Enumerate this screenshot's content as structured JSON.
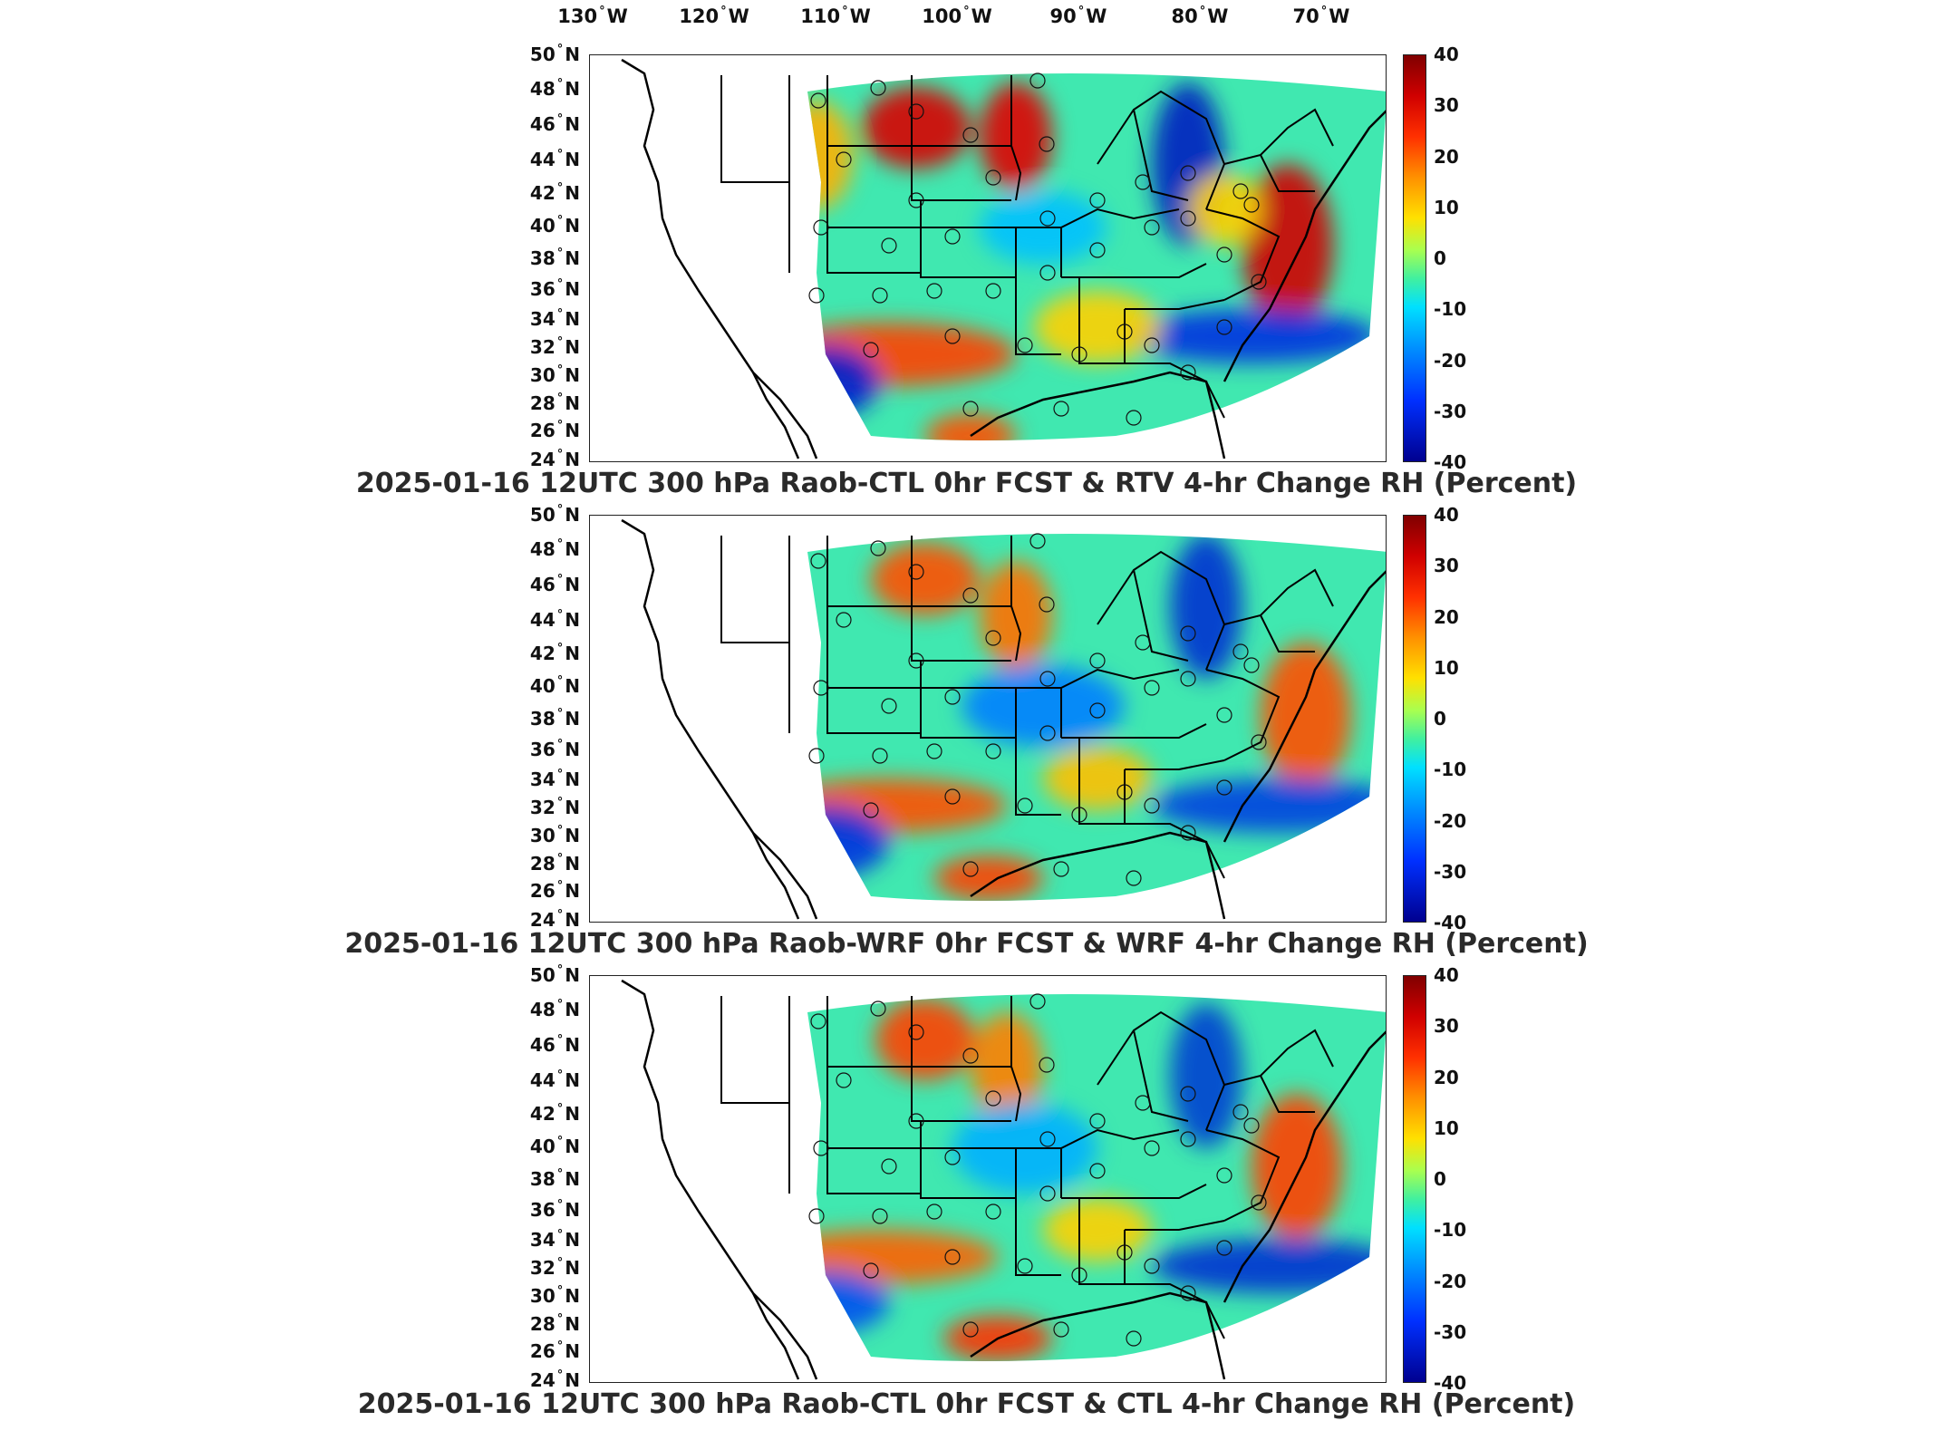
{
  "longitude_labels": [
    {
      "num": "130",
      "deg": "°",
      "hem": "W"
    },
    {
      "num": "120",
      "deg": "°",
      "hem": "W"
    },
    {
      "num": "110",
      "deg": "°",
      "hem": "W"
    },
    {
      "num": "100",
      "deg": "°",
      "hem": "W"
    },
    {
      "num": "90",
      "deg": "°",
      "hem": "W"
    },
    {
      "num": "80",
      "deg": "°",
      "hem": "W"
    },
    {
      "num": "70",
      "deg": "°",
      "hem": "W"
    }
  ],
  "latitude_labels": [
    {
      "num": "50",
      "deg": "°",
      "hem": "N"
    },
    {
      "num": "48",
      "deg": "°",
      "hem": "N"
    },
    {
      "num": "46",
      "deg": "°",
      "hem": "N"
    },
    {
      "num": "44",
      "deg": "°",
      "hem": "N"
    },
    {
      "num": "42",
      "deg": "°",
      "hem": "N"
    },
    {
      "num": "40",
      "deg": "°",
      "hem": "N"
    },
    {
      "num": "38",
      "deg": "°",
      "hem": "N"
    },
    {
      "num": "36",
      "deg": "°",
      "hem": "N"
    },
    {
      "num": "34",
      "deg": "°",
      "hem": "N"
    },
    {
      "num": "32",
      "deg": "°",
      "hem": "N"
    },
    {
      "num": "30",
      "deg": "°",
      "hem": "N"
    },
    {
      "num": "28",
      "deg": "°",
      "hem": "N"
    },
    {
      "num": "26",
      "deg": "°",
      "hem": "N"
    },
    {
      "num": "24",
      "deg": "°",
      "hem": "N"
    }
  ],
  "colorbar": {
    "ticks": [
      "40",
      "30",
      "20",
      "10",
      "0",
      "-10",
      "-20",
      "-30",
      "-40"
    ],
    "colors": [
      "#00008f",
      "#0030ff",
      "#0090ff",
      "#00e0ff",
      "#40f0a0",
      "#ffe000",
      "#ff9000",
      "#ff3000",
      "#d00000",
      "#800000"
    ]
  },
  "panels": [
    {
      "title": "2025-01-16 12UTC 300 hPa Raob-CTL 0hr FCST & RTV 4-hr Change RH (Percent)"
    },
    {
      "title": "2025-01-16 12UTC 300 hPa Raob-WRF 0hr FCST & WRF 4-hr Change RH (Percent)"
    },
    {
      "title": "2025-01-16 12UTC 300 hPa Raob-CTL 0hr FCST & CTL 4-hr Change RH (Percent)"
    }
  ]
}
